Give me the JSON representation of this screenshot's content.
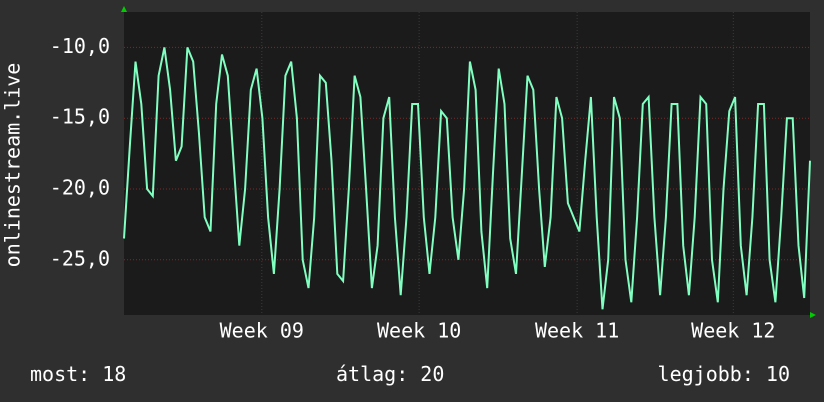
{
  "chart_data": {
    "type": "line",
    "y_label": "onlinestream.live",
    "series": [
      {
        "name": "onlinestream.live",
        "color": "#80ffc0",
        "values": [
          -23.5,
          -17,
          -11,
          -14,
          -20,
          -20.5,
          -12,
          -10,
          -13,
          -18,
          -17,
          -10,
          -11,
          -16,
          -22,
          -23,
          -14,
          -10.5,
          -12,
          -18,
          -24,
          -20,
          -13,
          -11.5,
          -15,
          -22,
          -26,
          -20,
          -12,
          -11,
          -15,
          -25,
          -27,
          -22,
          -12,
          -12.5,
          -18,
          -26,
          -26.5,
          -20,
          -12,
          -13.5,
          -20,
          -27,
          -24,
          -15,
          -13.5,
          -22,
          -27.5,
          -22,
          -14,
          -14,
          -22,
          -26,
          -22,
          -14.5,
          -15,
          -22,
          -25,
          -20,
          -11,
          -13,
          -23,
          -27,
          -19,
          -11.5,
          -14,
          -23.5,
          -26,
          -19,
          -12,
          -13,
          -20,
          -25.5,
          -22,
          -13.5,
          -15,
          -21,
          -22,
          -23,
          -18,
          -13.5,
          -22,
          -28.5,
          -25,
          -13.5,
          -15,
          -25,
          -28,
          -22,
          -14,
          -13.5,
          -22,
          -27.5,
          -22,
          -14,
          -14,
          -24,
          -27.5,
          -22,
          -13.5,
          -14,
          -25,
          -28,
          -20,
          -14.5,
          -13.5,
          -24,
          -27.5,
          -22,
          -14,
          -14,
          -25,
          -28,
          -22,
          -15,
          -15,
          -24,
          -27.7,
          -18
        ]
      }
    ],
    "xlim": [
      0,
      119
    ],
    "xticks": [
      {
        "value": 23.9,
        "label": "Week 09"
      },
      {
        "value": 51.2,
        "label": "Week 10"
      },
      {
        "value": 78.6,
        "label": "Week 11"
      },
      {
        "value": 105.7,
        "label": "Week 12"
      }
    ],
    "ylim": [
      -28.9,
      -7.5
    ],
    "yticks": [
      {
        "value": -10,
        "label": "-10,0"
      },
      {
        "value": -15,
        "label": "-15,0"
      },
      {
        "value": -20,
        "label": "-20,0"
      },
      {
        "value": -25,
        "label": "-25,0"
      }
    ],
    "grid": true,
    "footer": [
      {
        "label": "most:",
        "value": 18
      },
      {
        "label": "átlag:",
        "value": 20
      },
      {
        "label": "legjobb:",
        "value": 10
      }
    ]
  }
}
